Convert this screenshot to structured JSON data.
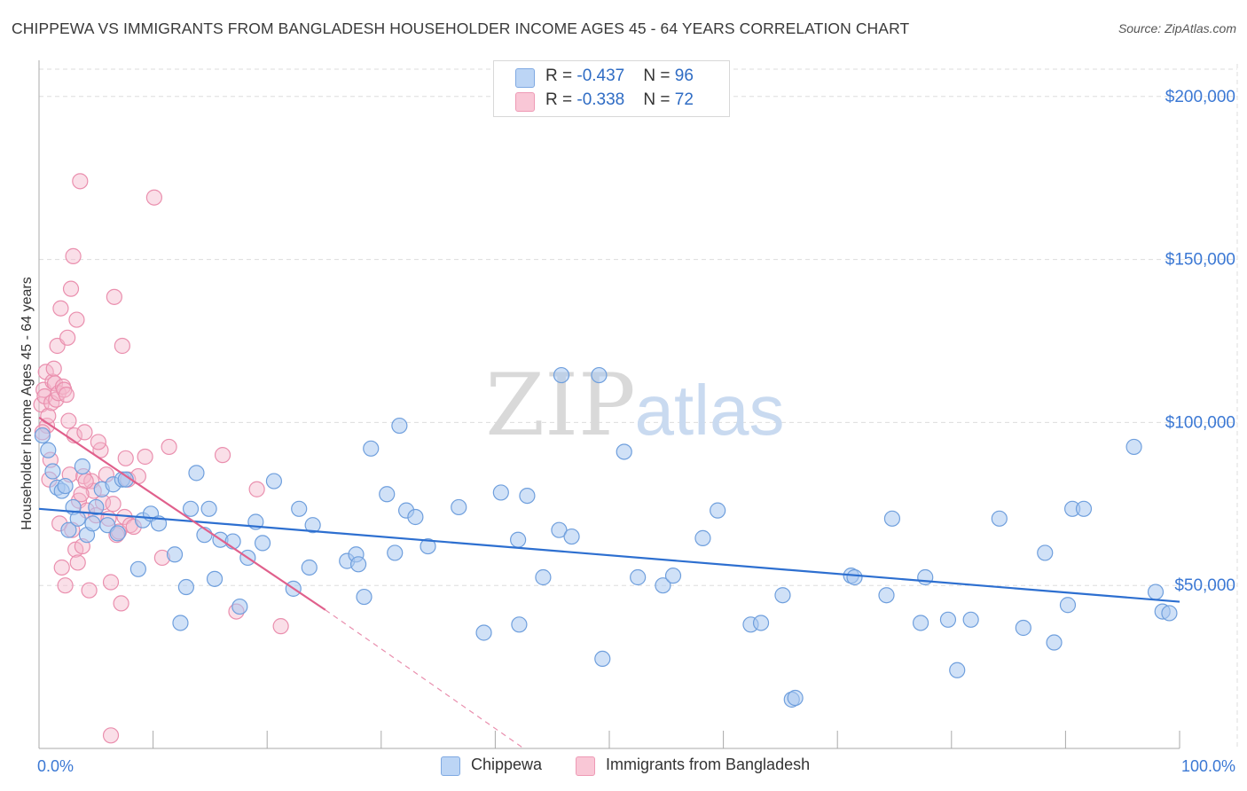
{
  "title": "CHIPPEWA VS IMMIGRANTS FROM BANGLADESH HOUSEHOLDER INCOME AGES 45 - 64 YEARS CORRELATION CHART",
  "source": "Source: ZipAtlas.com",
  "watermark": {
    "zip": "ZIP",
    "atlas": "atlas"
  },
  "legend": {
    "rows": [
      {
        "r_label": "R = ",
        "r_value": "-0.437",
        "n_label": "N = ",
        "n_value": "96"
      },
      {
        "r_label": "R = ",
        "r_value": "-0.338",
        "n_label": "N = ",
        "n_value": "72"
      }
    ]
  },
  "bottom_legend": {
    "series1": "Chippewa",
    "series2": "Immigrants from Bangladesh"
  },
  "colors": {
    "blue_fill": "#a9c8f0",
    "blue_stroke": "#6f9fdd",
    "blue_line": "#2d6fd0",
    "pink_fill": "#f5b8cb",
    "pink_stroke": "#ea8fae",
    "pink_line": "#e0608c",
    "axis_label": "#3b78d4",
    "grid": "#dddddd"
  },
  "chart_data": {
    "type": "scatter",
    "title": "CHIPPEWA VS IMMIGRANTS FROM BANGLADESH HOUSEHOLDER INCOME AGES 45 - 64 YEARS CORRELATION CHART",
    "xlabel": "",
    "ylabel": "Householder Income Ages 45 - 64 years",
    "xlim": [
      0,
      100
    ],
    "ylim": [
      0,
      210000
    ],
    "x_tick_labels": [
      "0.0%",
      "100.0%"
    ],
    "y_ticks": [
      50000,
      100000,
      150000,
      200000
    ],
    "y_tick_labels": [
      "$50,000",
      "$100,000",
      "$150,000",
      "$200,000"
    ],
    "series": [
      {
        "name": "Chippewa",
        "r": -0.437,
        "n": 96,
        "trend": {
          "x0": 0,
          "y0": 73500,
          "x1": 100,
          "y1": 45000
        },
        "points": [
          [
            0.3,
            96000
          ],
          [
            0.8,
            91500
          ],
          [
            1.2,
            85000
          ],
          [
            1.6,
            80000
          ],
          [
            2.0,
            79000
          ],
          [
            2.3,
            80500
          ],
          [
            2.6,
            67000
          ],
          [
            3.0,
            74000
          ],
          [
            3.4,
            70500
          ],
          [
            3.8,
            86500
          ],
          [
            4.2,
            65500
          ],
          [
            4.7,
            69000
          ],
          [
            5.0,
            74000
          ],
          [
            5.5,
            79500
          ],
          [
            6.0,
            68500
          ],
          [
            6.5,
            81000
          ],
          [
            6.9,
            66000
          ],
          [
            7.3,
            82500
          ],
          [
            7.6,
            82500
          ],
          [
            8.7,
            55000
          ],
          [
            9.1,
            70000
          ],
          [
            9.8,
            72000
          ],
          [
            10.5,
            69000
          ],
          [
            11.9,
            59500
          ],
          [
            12.9,
            49500
          ],
          [
            12.4,
            38500
          ],
          [
            13.3,
            73500
          ],
          [
            13.8,
            84500
          ],
          [
            14.5,
            65500
          ],
          [
            14.9,
            73500
          ],
          [
            15.4,
            52000
          ],
          [
            15.9,
            64000
          ],
          [
            17.0,
            63500
          ],
          [
            17.6,
            43500
          ],
          [
            18.3,
            58500
          ],
          [
            19.0,
            69500
          ],
          [
            19.6,
            63000
          ],
          [
            20.6,
            82000
          ],
          [
            22.3,
            49000
          ],
          [
            22.8,
            73500
          ],
          [
            23.7,
            55500
          ],
          [
            24.0,
            68500
          ],
          [
            27.0,
            57500
          ],
          [
            27.8,
            59500
          ],
          [
            28.0,
            56500
          ],
          [
            28.5,
            46500
          ],
          [
            29.1,
            92000
          ],
          [
            30.5,
            78000
          ],
          [
            31.2,
            60000
          ],
          [
            31.6,
            99000
          ],
          [
            32.2,
            73000
          ],
          [
            33.0,
            71000
          ],
          [
            34.1,
            62000
          ],
          [
            36.8,
            74000
          ],
          [
            39.0,
            35500
          ],
          [
            40.5,
            78500
          ],
          [
            42.0,
            64000
          ],
          [
            42.1,
            38000
          ],
          [
            42.8,
            77500
          ],
          [
            44.2,
            52500
          ],
          [
            45.6,
            67000
          ],
          [
            45.8,
            114500
          ],
          [
            46.7,
            65000
          ],
          [
            49.1,
            114500
          ],
          [
            49.4,
            27500
          ],
          [
            51.3,
            91000
          ],
          [
            52.5,
            52500
          ],
          [
            54.7,
            50000
          ],
          [
            55.6,
            53000
          ],
          [
            58.2,
            64500
          ],
          [
            59.5,
            73000
          ],
          [
            62.4,
            38000
          ],
          [
            63.3,
            38500
          ],
          [
            65.2,
            47000
          ],
          [
            66.0,
            15000
          ],
          [
            66.3,
            15500
          ],
          [
            71.2,
            53000
          ],
          [
            71.5,
            52500
          ],
          [
            74.3,
            47000
          ],
          [
            74.8,
            70500
          ],
          [
            77.3,
            38500
          ],
          [
            77.7,
            52500
          ],
          [
            79.7,
            39500
          ],
          [
            80.5,
            24000
          ],
          [
            81.7,
            39500
          ],
          [
            84.2,
            70500
          ],
          [
            86.3,
            37000
          ],
          [
            88.2,
            60000
          ],
          [
            89.0,
            32500
          ],
          [
            90.2,
            44000
          ],
          [
            90.6,
            73500
          ],
          [
            91.6,
            73500
          ],
          [
            96.0,
            92500
          ],
          [
            97.9,
            48000
          ],
          [
            98.5,
            42000
          ],
          [
            99.1,
            41500
          ]
        ]
      },
      {
        "name": "Immigrants from Bangladesh",
        "r": -0.338,
        "n": 72,
        "trend": {
          "x0": 0,
          "y0": 101500,
          "x1": 25.1,
          "y1": 42500
        },
        "trend_ext": {
          "x0": 25.1,
          "y0": 42500,
          "x1": 42.5,
          "y1": 0
        },
        "points": [
          [
            0.2,
            105500
          ],
          [
            0.4,
            110000
          ],
          [
            0.5,
            108000
          ],
          [
            0.6,
            115500
          ],
          [
            0.7,
            99000
          ],
          [
            0.8,
            102000
          ],
          [
            0.9,
            82500
          ],
          [
            1.1,
            106000
          ],
          [
            1.2,
            112500
          ],
          [
            1.3,
            116500
          ],
          [
            1.4,
            112000
          ],
          [
            1.5,
            107000
          ],
          [
            1.6,
            123500
          ],
          [
            1.7,
            109000
          ],
          [
            1.8,
            69000
          ],
          [
            1.9,
            135000
          ],
          [
            2.1,
            111000
          ],
          [
            2.2,
            110000
          ],
          [
            2.3,
            50000
          ],
          [
            2.4,
            108500
          ],
          [
            2.5,
            126000
          ],
          [
            2.6,
            100500
          ],
          [
            2.7,
            84000
          ],
          [
            2.8,
            141000
          ],
          [
            2.9,
            67000
          ],
          [
            3.0,
            151000
          ],
          [
            3.1,
            96000
          ],
          [
            3.2,
            61000
          ],
          [
            3.3,
            131500
          ],
          [
            3.4,
            57000
          ],
          [
            3.5,
            76000
          ],
          [
            3.6,
            174000
          ],
          [
            3.8,
            62000
          ],
          [
            3.9,
            83500
          ],
          [
            4.0,
            97000
          ],
          [
            4.2,
            73000
          ],
          [
            4.4,
            48500
          ],
          [
            4.6,
            82000
          ],
          [
            4.8,
            79000
          ],
          [
            5.0,
            71500
          ],
          [
            5.4,
            91500
          ],
          [
            5.6,
            75500
          ],
          [
            5.9,
            84000
          ],
          [
            6.1,
            70500
          ],
          [
            6.3,
            51000
          ],
          [
            6.5,
            75000
          ],
          [
            6.6,
            138500
          ],
          [
            6.8,
            65500
          ],
          [
            7.0,
            66500
          ],
          [
            7.2,
            44500
          ],
          [
            7.3,
            123500
          ],
          [
            7.5,
            71000
          ],
          [
            7.6,
            89000
          ],
          [
            7.8,
            82500
          ],
          [
            8.0,
            68500
          ],
          [
            8.3,
            68000
          ],
          [
            8.7,
            83500
          ],
          [
            9.3,
            89500
          ],
          [
            10.1,
            169000
          ],
          [
            10.8,
            58500
          ],
          [
            11.4,
            92500
          ],
          [
            16.1,
            90000
          ],
          [
            17.3,
            42000
          ],
          [
            19.1,
            79500
          ],
          [
            21.2,
            37500
          ],
          [
            6.3,
            4000
          ],
          [
            0.3,
            97000
          ],
          [
            1.0,
            88500
          ],
          [
            2.0,
            55500
          ],
          [
            4.1,
            82000
          ],
          [
            5.2,
            94000
          ],
          [
            3.7,
            78000
          ]
        ]
      }
    ]
  }
}
